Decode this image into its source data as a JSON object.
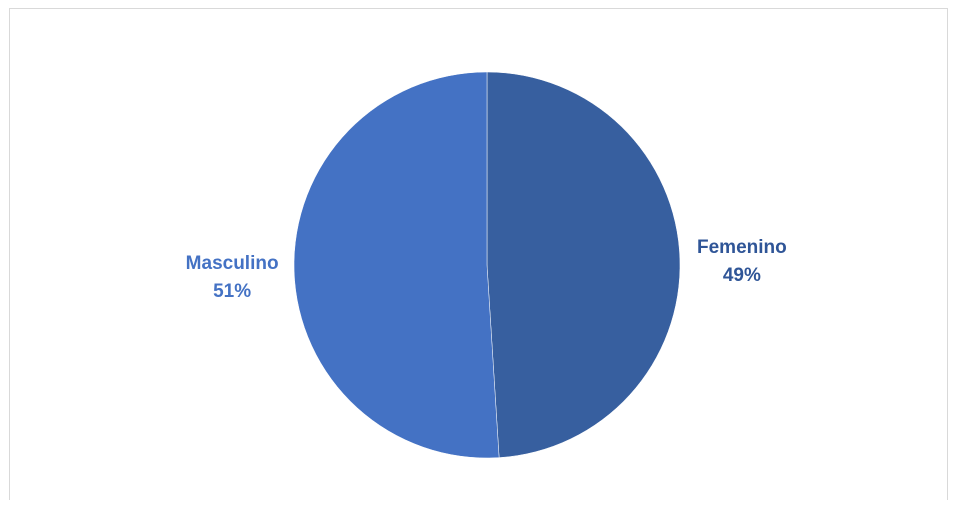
{
  "chart_data": {
    "type": "pie",
    "title": "",
    "slices": [
      {
        "label": "Femenino",
        "value": 49,
        "display": "49%",
        "color": "#375f9f"
      },
      {
        "label": "Masculino",
        "value": 51,
        "display": "51%",
        "color": "#4472c4"
      }
    ],
    "label_colors": {
      "Femenino": "#2f5597",
      "Masculino": "#4472c4"
    },
    "start_angle": "12 o'clock",
    "direction": "clockwise",
    "legend": "none",
    "data_labels": "outside"
  }
}
